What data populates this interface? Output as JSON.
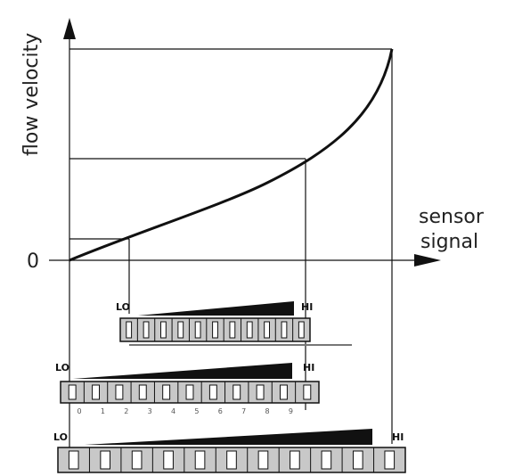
{
  "axes": {
    "y_label": "flow velocity",
    "x_label": [
      "sensor",
      "signal"
    ],
    "origin": "0"
  },
  "bars": [
    {
      "lo": "LO",
      "hi": "HI"
    },
    {
      "lo": "LO",
      "hi": "HI",
      "digits": [
        "0",
        "1",
        "2",
        "3",
        "4",
        "5",
        "6",
        "7",
        "8",
        "9"
      ]
    },
    {
      "lo": "LO",
      "hi": "HI"
    }
  ]
}
